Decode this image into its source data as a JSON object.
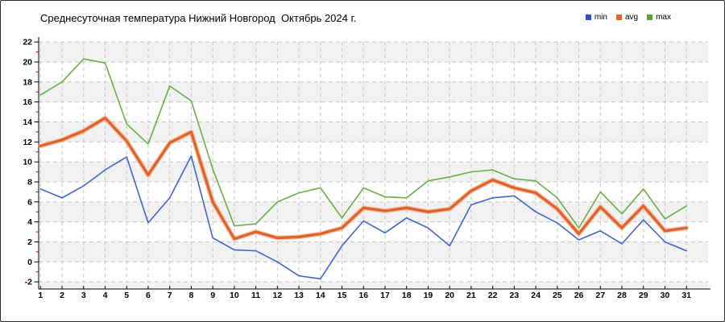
{
  "title": "Среднесуточная температура Нижний Новгород  Октябрь 2024 г.",
  "legend": {
    "items": [
      {
        "label": "min",
        "color": "#2f4fd2"
      },
      {
        "label": "avg",
        "color": "#e2622b"
      },
      {
        "label": "max",
        "color": "#55a42e"
      }
    ]
  },
  "chart_data": {
    "type": "line",
    "title": "Среднесуточная температура Нижний Новгород  Октябрь 2024 г.",
    "xlabel": "",
    "ylabel": "",
    "x": [
      1,
      2,
      3,
      4,
      5,
      6,
      7,
      8,
      9,
      10,
      11,
      12,
      13,
      14,
      15,
      16,
      17,
      18,
      19,
      20,
      21,
      22,
      23,
      24,
      25,
      26,
      27,
      28,
      29,
      30,
      31
    ],
    "series": [
      {
        "name": "min",
        "color": "#4363cf",
        "values": [
          7.3,
          6.4,
          7.6,
          9.2,
          10.5,
          3.9,
          6.4,
          10.6,
          2.4,
          1.2,
          1.1,
          0.0,
          -1.4,
          -1.7,
          1.6,
          4.1,
          2.9,
          4.4,
          3.4,
          1.6,
          5.7,
          6.4,
          6.6,
          5.0,
          3.9,
          2.2,
          3.1,
          1.8,
          4.2,
          2.0,
          1.1
        ]
      },
      {
        "name": "avg",
        "color": "#e2622b",
        "halo_color": "#f5a271",
        "values": [
          11.6,
          12.2,
          13.1,
          14.4,
          12.1,
          8.7,
          11.9,
          13.0,
          6.0,
          2.3,
          3.0,
          2.4,
          2.5,
          2.8,
          3.4,
          5.4,
          5.1,
          5.4,
          5.0,
          5.3,
          7.1,
          8.2,
          7.4,
          6.9,
          5.3,
          2.8,
          5.5,
          3.4,
          5.6,
          3.1,
          3.4
        ]
      },
      {
        "name": "max",
        "color": "#68ae45",
        "values": [
          16.7,
          18.0,
          20.3,
          19.9,
          13.8,
          11.8,
          17.6,
          16.1,
          9.3,
          3.6,
          3.8,
          6.0,
          6.9,
          7.4,
          4.4,
          7.4,
          6.5,
          6.4,
          8.1,
          8.5,
          9.0,
          9.2,
          8.3,
          8.1,
          6.4,
          3.4,
          7.0,
          4.8,
          7.3,
          4.3,
          5.6
        ]
      }
    ],
    "ylim": [
      -2,
      22
    ],
    "yticks": [
      -2,
      0,
      2,
      4,
      6,
      8,
      10,
      12,
      14,
      16,
      18,
      20,
      22
    ],
    "grid": "dashed",
    "legend_position": "top-right",
    "band_color": "#f2f2f2",
    "grid_color": "#c4c4c4",
    "axis_color": "#000000",
    "minor_tick_color": "#cc1111",
    "tick_label_color": "#000000"
  }
}
